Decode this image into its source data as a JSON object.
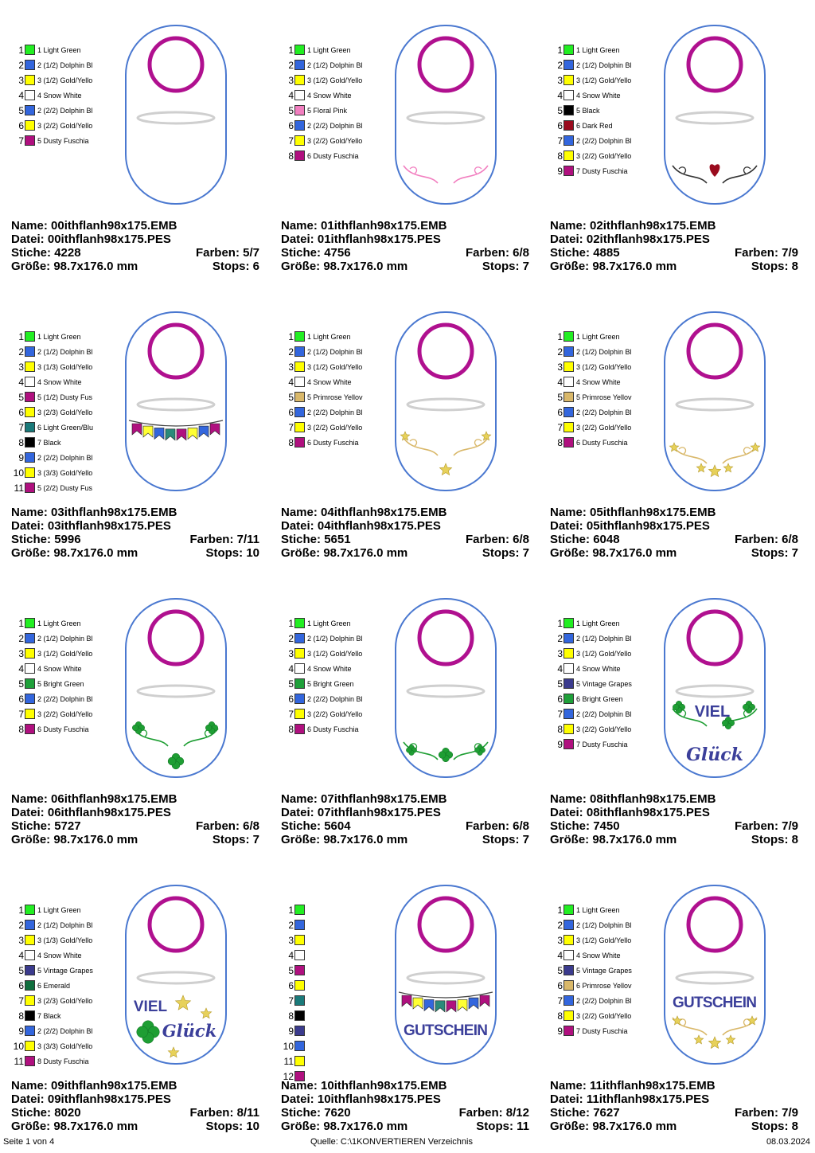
{
  "colors": {
    "light_green": "#22ee22",
    "dolphin_blue": "#3366dd",
    "gold_yellow": "#ffff00",
    "snow_white": "#ffffff",
    "dusty_fuschia": "#b0107f",
    "floral_pink": "#f27fc0",
    "black": "#000000",
    "dark_red": "#9a0b1e",
    "light_green_blue": "#1a7a7a",
    "primrose_yellow": "#d9b86a",
    "bright_green": "#1fa03a",
    "vintage_grapes": "#3b3b8e",
    "emerald": "#0f6e3d",
    "tag_outline": "#4a78d0",
    "ring": "#b0108f",
    "lettering": "#3b3f9a",
    "star_gold": "#e7d15a",
    "clover_green": "#1e9e33"
  },
  "labels": {
    "name": "Name:",
    "file": "Datei:",
    "stitches": "Stiche:",
    "colors": "Farben:",
    "size": "Größe:",
    "stops": "Stops:"
  },
  "designs": [
    {
      "name": "00ithflanh98x175.EMB",
      "file": "00ithflanh98x175.PES",
      "stitches": "4228",
      "colors_count": "5/7",
      "size": "98.7x176.0 mm",
      "stops": "6",
      "motif": "none",
      "palette": [
        {
          "num": "1",
          "label": "1 Light Green",
          "color": "#22ee22"
        },
        {
          "num": "2",
          "label": "2 (1/2) Dolphin Bl",
          "color": "#3366dd"
        },
        {
          "num": "3",
          "label": "3 (1/2) Gold/Yello",
          "color": "#ffff00"
        },
        {
          "num": "4",
          "label": "4 Snow White",
          "color": "#ffffff"
        },
        {
          "num": "5",
          "label": "2 (2/2) Dolphin Bl",
          "color": "#3366dd"
        },
        {
          "num": "6",
          "label": "3 (2/2) Gold/Yello",
          "color": "#ffff00"
        },
        {
          "num": "7",
          "label": "5 Dusty Fuschia",
          "color": "#b0107f"
        }
      ]
    },
    {
      "name": "01ithflanh98x175.EMB",
      "file": "01ithflanh98x175.PES",
      "stitches": "4756",
      "colors_count": "6/8",
      "size": "98.7x176.0 mm",
      "stops": "7",
      "motif": "pink-swirl",
      "palette": [
        {
          "num": "1",
          "label": "1 Light Green",
          "color": "#22ee22"
        },
        {
          "num": "2",
          "label": "2 (1/2) Dolphin Bl",
          "color": "#3366dd"
        },
        {
          "num": "3",
          "label": "3 (1/2) Gold/Yello",
          "color": "#ffff00"
        },
        {
          "num": "4",
          "label": "4 Snow White",
          "color": "#ffffff"
        },
        {
          "num": "5",
          "label": "5 Floral Pink",
          "color": "#f27fc0"
        },
        {
          "num": "6",
          "label": "2 (2/2) Dolphin Bl",
          "color": "#3366dd"
        },
        {
          "num": "7",
          "label": "3 (2/2) Gold/Yello",
          "color": "#ffff00"
        },
        {
          "num": "8",
          "label": "6 Dusty Fuschia",
          "color": "#b0107f"
        }
      ]
    },
    {
      "name": "02ithflanh98x175.EMB",
      "file": "02ithflanh98x175.PES",
      "stitches": "4885",
      "colors_count": "7/9",
      "size": "98.7x176.0 mm",
      "stops": "8",
      "motif": "heart-swirl",
      "palette": [
        {
          "num": "1",
          "label": "1 Light Green",
          "color": "#22ee22"
        },
        {
          "num": "2",
          "label": "2 (1/2) Dolphin Bl",
          "color": "#3366dd"
        },
        {
          "num": "3",
          "label": "3 (1/2) Gold/Yello",
          "color": "#ffff00"
        },
        {
          "num": "4",
          "label": "4 Snow White",
          "color": "#ffffff"
        },
        {
          "num": "5",
          "label": "5 Black",
          "color": "#000000"
        },
        {
          "num": "6",
          "label": "6 Dark Red",
          "color": "#9a0b1e"
        },
        {
          "num": "7",
          "label": "2 (2/2) Dolphin Bl",
          "color": "#3366dd"
        },
        {
          "num": "8",
          "label": "3 (2/2) Gold/Yello",
          "color": "#ffff00"
        },
        {
          "num": "9",
          "label": "7 Dusty Fuschia",
          "color": "#b0107f"
        }
      ]
    },
    {
      "name": "03ithflanh98x175.EMB",
      "file": "03ithflanh98x175.PES",
      "stitches": "5996",
      "colors_count": "7/11",
      "size": "98.7x176.0 mm",
      "stops": "10",
      "motif": "bunting",
      "palette": [
        {
          "num": "1",
          "label": "1 Light Green",
          "color": "#22ee22"
        },
        {
          "num": "2",
          "label": "2 (1/2) Dolphin Bl",
          "color": "#3366dd"
        },
        {
          "num": "3",
          "label": "3 (1/3) Gold/Yello",
          "color": "#ffff00"
        },
        {
          "num": "4",
          "label": "4 Snow White",
          "color": "#ffffff"
        },
        {
          "num": "5",
          "label": "5 (1/2) Dusty Fus",
          "color": "#b0107f"
        },
        {
          "num": "6",
          "label": "3 (2/3) Gold/Yello",
          "color": "#ffff00"
        },
        {
          "num": "7",
          "label": "6 Light Green/Blu",
          "color": "#1a7a7a"
        },
        {
          "num": "8",
          "label": "7 Black",
          "color": "#000000"
        },
        {
          "num": "9",
          "label": "2 (2/2) Dolphin Bl",
          "color": "#3366dd"
        },
        {
          "num": "10",
          "label": "3 (3/3) Gold/Yello",
          "color": "#ffff00"
        },
        {
          "num": "11",
          "label": "5 (2/2) Dusty Fus",
          "color": "#b0107f"
        }
      ]
    },
    {
      "name": "04ithflanh98x175.EMB",
      "file": "04ithflanh98x175.PES",
      "stitches": "5651",
      "colors_count": "6/8",
      "size": "98.7x176.0 mm",
      "stops": "7",
      "motif": "stars-swirl",
      "palette": [
        {
          "num": "1",
          "label": "1 Light Green",
          "color": "#22ee22"
        },
        {
          "num": "2",
          "label": "2 (1/2) Dolphin Bl",
          "color": "#3366dd"
        },
        {
          "num": "3",
          "label": "3 (1/2) Gold/Yello",
          "color": "#ffff00"
        },
        {
          "num": "4",
          "label": "4 Snow White",
          "color": "#ffffff"
        },
        {
          "num": "5",
          "label": "5 Primrose Yellov",
          "color": "#d9b86a"
        },
        {
          "num": "6",
          "label": "2 (2/2) Dolphin Bl",
          "color": "#3366dd"
        },
        {
          "num": "7",
          "label": "3 (2/2) Gold/Yello",
          "color": "#ffff00"
        },
        {
          "num": "8",
          "label": "6 Dusty Fuschia",
          "color": "#b0107f"
        }
      ]
    },
    {
      "name": "05ithflanh98x175.EMB",
      "file": "05ithflanh98x175.PES",
      "stitches": "6048",
      "colors_count": "6/8",
      "size": "98.7x176.0 mm",
      "stops": "7",
      "motif": "stars-band",
      "palette": [
        {
          "num": "1",
          "label": "1 Light Green",
          "color": "#22ee22"
        },
        {
          "num": "2",
          "label": "2 (1/2) Dolphin Bl",
          "color": "#3366dd"
        },
        {
          "num": "3",
          "label": "3 (1/2) Gold/Yello",
          "color": "#ffff00"
        },
        {
          "num": "4",
          "label": "4 Snow White",
          "color": "#ffffff"
        },
        {
          "num": "5",
          "label": "5 Primrose Yellov",
          "color": "#d9b86a"
        },
        {
          "num": "6",
          "label": "2 (2/2) Dolphin Bl",
          "color": "#3366dd"
        },
        {
          "num": "7",
          "label": "3 (2/2) Gold/Yello",
          "color": "#ffff00"
        },
        {
          "num": "8",
          "label": "6 Dusty Fuschia",
          "color": "#b0107f"
        }
      ]
    },
    {
      "name": "06ithflanh98x175.EMB",
      "file": "06ithflanh98x175.PES",
      "stitches": "5727",
      "colors_count": "6/8",
      "size": "98.7x176.0 mm",
      "stops": "7",
      "motif": "clover-swirl",
      "palette": [
        {
          "num": "1",
          "label": "1 Light Green",
          "color": "#22ee22"
        },
        {
          "num": "2",
          "label": "2 (1/2) Dolphin Bl",
          "color": "#3366dd"
        },
        {
          "num": "3",
          "label": "3 (1/2) Gold/Yello",
          "color": "#ffff00"
        },
        {
          "num": "4",
          "label": "4 Snow White",
          "color": "#ffffff"
        },
        {
          "num": "5",
          "label": "5 Bright Green",
          "color": "#1fa03a"
        },
        {
          "num": "6",
          "label": "2 (2/2) Dolphin Bl",
          "color": "#3366dd"
        },
        {
          "num": "7",
          "label": "3 (2/2) Gold/Yello",
          "color": "#ffff00"
        },
        {
          "num": "8",
          "label": "6 Dusty Fuschia",
          "color": "#b0107f"
        }
      ]
    },
    {
      "name": "07ithflanh98x175.EMB",
      "file": "07ithflanh98x175.PES",
      "stitches": "5604",
      "colors_count": "6/8",
      "size": "98.7x176.0 mm",
      "stops": "7",
      "motif": "clover-band",
      "palette": [
        {
          "num": "1",
          "label": "1 Light Green",
          "color": "#22ee22"
        },
        {
          "num": "2",
          "label": "2 (1/2) Dolphin Bl",
          "color": "#3366dd"
        },
        {
          "num": "3",
          "label": "3 (1/2) Gold/Yello",
          "color": "#ffff00"
        },
        {
          "num": "4",
          "label": "4 Snow White",
          "color": "#ffffff"
        },
        {
          "num": "5",
          "label": "5 Bright Green",
          "color": "#1fa03a"
        },
        {
          "num": "6",
          "label": "2 (2/2) Dolphin Bl",
          "color": "#3366dd"
        },
        {
          "num": "7",
          "label": "3 (2/2) Gold/Yello",
          "color": "#ffff00"
        },
        {
          "num": "8",
          "label": "6 Dusty Fuschia",
          "color": "#b0107f"
        }
      ]
    },
    {
      "name": "08ithflanh98x175.EMB",
      "file": "08ithflanh98x175.PES",
      "stitches": "7450",
      "colors_count": "7/9",
      "size": "98.7x176.0 mm",
      "stops": "8",
      "motif": "viel-glueck-clover",
      "text_line1": "VIEL",
      "text_line2": "Glück",
      "palette": [
        {
          "num": "1",
          "label": "1 Light Green",
          "color": "#22ee22"
        },
        {
          "num": "2",
          "label": "2 (1/2) Dolphin Bl",
          "color": "#3366dd"
        },
        {
          "num": "3",
          "label": "3 (1/2) Gold/Yello",
          "color": "#ffff00"
        },
        {
          "num": "4",
          "label": "4 Snow White",
          "color": "#ffffff"
        },
        {
          "num": "5",
          "label": "5 Vintage Grapes",
          "color": "#3b3b8e"
        },
        {
          "num": "6",
          "label": "6 Bright Green",
          "color": "#1fa03a"
        },
        {
          "num": "7",
          "label": "2 (2/2) Dolphin Bl",
          "color": "#3366dd"
        },
        {
          "num": "8",
          "label": "3 (2/2) Gold/Yello",
          "color": "#ffff00"
        },
        {
          "num": "9",
          "label": "7 Dusty Fuschia",
          "color": "#b0107f"
        }
      ]
    },
    {
      "name": "09ithflanh98x175.EMB",
      "file": "09ithflanh98x175.PES",
      "stitches": "8020",
      "colors_count": "8/11",
      "size": "98.7x176.0 mm",
      "stops": "10",
      "motif": "viel-glueck-stars",
      "text_line1": "VIEL",
      "text_line2": "Glück",
      "palette": [
        {
          "num": "1",
          "label": "1 Light Green",
          "color": "#22ee22"
        },
        {
          "num": "2",
          "label": "2 (1/2) Dolphin Bl",
          "color": "#3366dd"
        },
        {
          "num": "3",
          "label": "3 (1/3) Gold/Yello",
          "color": "#ffff00"
        },
        {
          "num": "4",
          "label": "4 Snow White",
          "color": "#ffffff"
        },
        {
          "num": "5",
          "label": "5 Vintage Grapes",
          "color": "#3b3b8e"
        },
        {
          "num": "6",
          "label": "6 Emerald",
          "color": "#0f6e3d"
        },
        {
          "num": "7",
          "label": "3 (2/3) Gold/Yello",
          "color": "#ffff00"
        },
        {
          "num": "8",
          "label": "7 Black",
          "color": "#000000"
        },
        {
          "num": "9",
          "label": "2 (2/2) Dolphin Bl",
          "color": "#3366dd"
        },
        {
          "num": "10",
          "label": "3 (3/3) Gold/Yello",
          "color": "#ffff00"
        },
        {
          "num": "11",
          "label": "8 Dusty Fuschia",
          "color": "#b0107f"
        }
      ]
    },
    {
      "name": "10ithflanh98x175.EMB",
      "file": "10ithflanh98x175.PES",
      "stitches": "7620",
      "colors_count": "8/12",
      "size": "98.7x176.0 mm",
      "stops": "11",
      "motif": "gutschein-bunting",
      "text_line1": "GUTSCHEIN",
      "palette": [
        {
          "num": "1",
          "label": "",
          "color": "#22ee22"
        },
        {
          "num": "2",
          "label": "",
          "color": "#3366dd"
        },
        {
          "num": "3",
          "label": "",
          "color": "#ffff00"
        },
        {
          "num": "4",
          "label": "",
          "color": "#ffffff"
        },
        {
          "num": "5",
          "label": "",
          "color": "#b0107f"
        },
        {
          "num": "6",
          "label": "",
          "color": "#ffff00"
        },
        {
          "num": "7",
          "label": "",
          "color": "#1a7a7a"
        },
        {
          "num": "8",
          "label": "",
          "color": "#000000"
        },
        {
          "num": "9",
          "label": "",
          "color": "#3b3b8e"
        },
        {
          "num": "10",
          "label": "",
          "color": "#3366dd"
        },
        {
          "num": "11",
          "label": "",
          "color": "#ffff00"
        },
        {
          "num": "12",
          "label": "",
          "color": "#b0107f"
        }
      ]
    },
    {
      "name": "11ithflanh98x175.EMB",
      "file": "11ithflanh98x175.PES",
      "stitches": "7627",
      "colors_count": "7/9",
      "size": "98.7x176.0 mm",
      "stops": "8",
      "motif": "gutschein-stars",
      "text_line1": "GUTSCHEIN",
      "palette": [
        {
          "num": "1",
          "label": "1 Light Green",
          "color": "#22ee22"
        },
        {
          "num": "2",
          "label": "2 (1/2) Dolphin Bl",
          "color": "#3366dd"
        },
        {
          "num": "3",
          "label": "3 (1/2) Gold/Yello",
          "color": "#ffff00"
        },
        {
          "num": "4",
          "label": "4 Snow White",
          "color": "#ffffff"
        },
        {
          "num": "5",
          "label": "5 Vintage Grapes",
          "color": "#3b3b8e"
        },
        {
          "num": "6",
          "label": "6 Primrose Yellov",
          "color": "#d9b86a"
        },
        {
          "num": "7",
          "label": "2 (2/2) Dolphin Bl",
          "color": "#3366dd"
        },
        {
          "num": "8",
          "label": "3 (2/2) Gold/Yello",
          "color": "#ffff00"
        },
        {
          "num": "9",
          "label": "7 Dusty Fuschia",
          "color": "#b0107f"
        }
      ]
    }
  ],
  "footer": {
    "page": "Seite 1 von 4",
    "source": "Quelle: C:\\1KONVERTIEREN Verzeichnis",
    "date": "08.03.2024"
  }
}
